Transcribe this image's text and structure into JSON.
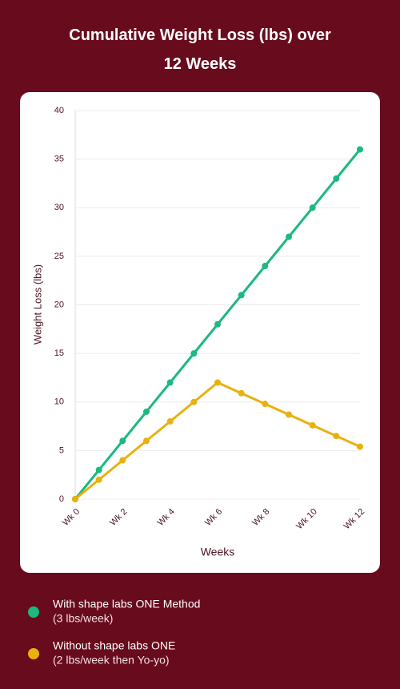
{
  "chart_data": {
    "type": "line",
    "title": "Cumulative Weight Loss (lbs) over 12 Weeks",
    "x_label": "Weeks",
    "y_label": "Weight Loss (lbs)",
    "categories": [
      "Wk 0",
      null,
      "Wk 2",
      null,
      "Wk 4",
      null,
      "Wk 6",
      null,
      "Wk 8",
      null,
      "Wk 10",
      null,
      "Wk 12"
    ],
    "series": [
      {
        "name": "With shape labs ONE Method",
        "description": "(3 lbs/week)",
        "color": "#1db97f",
        "values": [
          0,
          3,
          6,
          9,
          12,
          15,
          18,
          21,
          24,
          27,
          30,
          33,
          36
        ]
      },
      {
        "name": "Without shape labs ONE",
        "description": "(2 lbs/week then Yo-yo)",
        "color": "#e8b10e",
        "values": [
          0,
          2,
          4,
          6,
          8,
          10,
          12,
          10.9,
          9.8,
          8.7,
          7.6,
          6.5,
          5.4
        ]
      }
    ],
    "ylim": [
      0,
      40
    ],
    "yticks": [
      0,
      5,
      10,
      15,
      20,
      25,
      30,
      35,
      40
    ],
    "grid": true
  }
}
